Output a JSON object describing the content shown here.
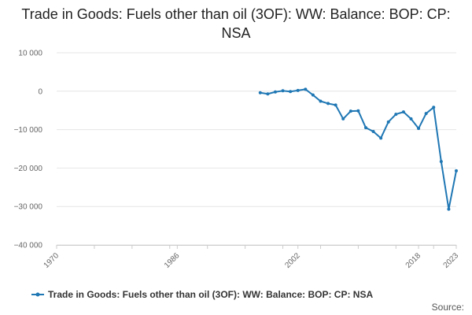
{
  "chart_data": {
    "type": "line",
    "title": "Trade in Goods: Fuels other than oil (3OF): WW: Balance: BOP: CP: NSA",
    "xlabel": "",
    "ylabel": "",
    "xlim": [
      1970,
      2023
    ],
    "ylim": [
      -40000,
      10000
    ],
    "x_ticks": [
      1970,
      1986,
      2002,
      2018,
      2023
    ],
    "y_ticks": [
      {
        "value": 10000,
        "label": "10 000"
      },
      {
        "value": 0,
        "label": "0"
      },
      {
        "value": -10000,
        "label": "−10 000"
      },
      {
        "value": -20000,
        "label": "−20 000"
      },
      {
        "value": -30000,
        "label": "−30 000"
      },
      {
        "value": -40000,
        "label": "−40 000"
      }
    ],
    "grid": true,
    "legend_position": "bottom",
    "series": [
      {
        "name": "Trade in Goods: Fuels other than oil (3OF): WW: Balance: BOP: CP: NSA",
        "color": "#1f77b4",
        "x": [
          1997,
          1998,
          1999,
          2000,
          2001,
          2002,
          2003,
          2004,
          2005,
          2006,
          2007,
          2008,
          2009,
          2010,
          2011,
          2012,
          2013,
          2014,
          2015,
          2016,
          2017,
          2018,
          2019,
          2020,
          2021,
          2022,
          2023
        ],
        "values": [
          -400,
          -700,
          -200,
          100,
          -100,
          200,
          500,
          -1000,
          -2600,
          -3200,
          -3600,
          -7200,
          -5200,
          -5100,
          -9500,
          -10500,
          -12200,
          -8000,
          -6000,
          -5400,
          -7200,
          -9700,
          -5800,
          -4200,
          -18300,
          -30700,
          -20700
        ]
      }
    ]
  },
  "legend": {
    "label": "Trade in Goods: Fuels other than oil (3OF): WW: Balance: BOP: CP: NSA"
  },
  "source": {
    "label": "Source:"
  }
}
